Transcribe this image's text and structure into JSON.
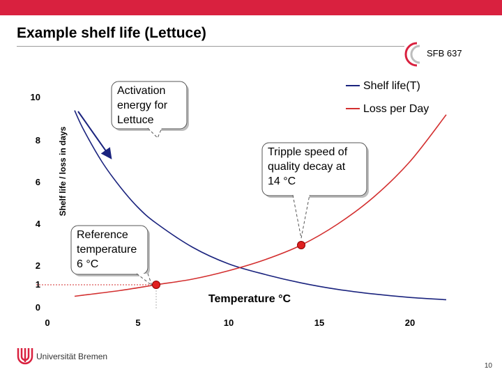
{
  "header": {
    "accent_color": "#d9213f"
  },
  "slide": {
    "title": "Example shelf life (Lettuce)"
  },
  "logo": {
    "sfb_text": "SFB 637"
  },
  "footer": {
    "university": "Universität Bremen",
    "page": "10"
  },
  "chart_data": {
    "type": "line",
    "xlabel": "Temperature °C",
    "ylabel": "Shelf life / loss in days",
    "xlim": [
      0,
      22
    ],
    "ylim": [
      0,
      11
    ],
    "x_ticks": [
      "0",
      "5",
      "10",
      "15",
      "20"
    ],
    "y_ticks": [
      "0",
      "1",
      "2",
      "4",
      "6",
      "8",
      "10"
    ],
    "grid": false,
    "legend_position": "top-right",
    "series": [
      {
        "name": "Shelf life(T)",
        "color": "#1a237e",
        "x": [
          1.5,
          2,
          3,
          4,
          5,
          6,
          8,
          10,
          12,
          14,
          16,
          18,
          20,
          22
        ],
        "y": [
          9.4,
          8.5,
          7.0,
          5.8,
          4.8,
          4.05,
          2.9,
          2.1,
          1.55,
          1.1,
          0.8,
          0.6,
          0.45,
          0.35
        ]
      },
      {
        "name": "Loss per Day",
        "color": "#d32f2f",
        "x": [
          1.5,
          2,
          4,
          6,
          8,
          10,
          12,
          14,
          16,
          18,
          20,
          22
        ],
        "y": [
          0.5,
          0.55,
          0.75,
          1.0,
          1.3,
          1.75,
          2.3,
          3.0,
          4.0,
          5.3,
          7.0,
          9.2
        ]
      }
    ],
    "points": [
      {
        "x": 6,
        "y": 1.0,
        "color": "#e02020"
      },
      {
        "x": 14,
        "y": 3.0,
        "color": "#e02020"
      }
    ],
    "reference_line": {
      "x": 6,
      "y": 1,
      "label": "1",
      "color": "#d32f2f"
    },
    "callouts": [
      {
        "id": "activation",
        "lines": [
          "Activation",
          "energy for",
          "Lettuce"
        ]
      },
      {
        "id": "tripple",
        "lines": [
          "Tripple speed of",
          "quality decay at",
          "14 °C"
        ]
      },
      {
        "id": "reference",
        "lines": [
          "Reference",
          "temperature",
          "6 °C"
        ]
      }
    ]
  }
}
